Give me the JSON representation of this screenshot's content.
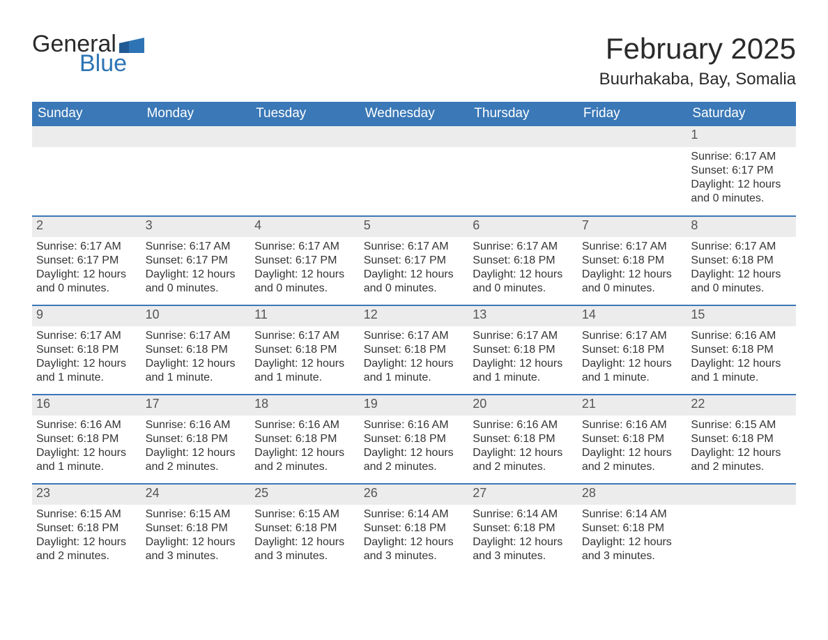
{
  "logo": {
    "general": "General",
    "blue": "Blue",
    "accent_color": "#2e74b5"
  },
  "title": "February 2025",
  "location": "Buurhakaba, Bay, Somalia",
  "colors": {
    "header_bg": "#3a78b7",
    "header_text": "#ffffff",
    "strip_bg": "#ececec",
    "border": "#3a78b7",
    "text": "#333333",
    "daynum": "#555555",
    "page_bg": "#ffffff"
  },
  "weekdays": [
    "Sunday",
    "Monday",
    "Tuesday",
    "Wednesday",
    "Thursday",
    "Friday",
    "Saturday"
  ],
  "weeks": [
    [
      null,
      null,
      null,
      null,
      null,
      null,
      {
        "n": "1",
        "sunrise": "Sunrise: 6:17 AM",
        "sunset": "Sunset: 6:17 PM",
        "daylight": "Daylight: 12 hours and 0 minutes."
      }
    ],
    [
      {
        "n": "2",
        "sunrise": "Sunrise: 6:17 AM",
        "sunset": "Sunset: 6:17 PM",
        "daylight": "Daylight: 12 hours and 0 minutes."
      },
      {
        "n": "3",
        "sunrise": "Sunrise: 6:17 AM",
        "sunset": "Sunset: 6:17 PM",
        "daylight": "Daylight: 12 hours and 0 minutes."
      },
      {
        "n": "4",
        "sunrise": "Sunrise: 6:17 AM",
        "sunset": "Sunset: 6:17 PM",
        "daylight": "Daylight: 12 hours and 0 minutes."
      },
      {
        "n": "5",
        "sunrise": "Sunrise: 6:17 AM",
        "sunset": "Sunset: 6:17 PM",
        "daylight": "Daylight: 12 hours and 0 minutes."
      },
      {
        "n": "6",
        "sunrise": "Sunrise: 6:17 AM",
        "sunset": "Sunset: 6:18 PM",
        "daylight": "Daylight: 12 hours and 0 minutes."
      },
      {
        "n": "7",
        "sunrise": "Sunrise: 6:17 AM",
        "sunset": "Sunset: 6:18 PM",
        "daylight": "Daylight: 12 hours and 0 minutes."
      },
      {
        "n": "8",
        "sunrise": "Sunrise: 6:17 AM",
        "sunset": "Sunset: 6:18 PM",
        "daylight": "Daylight: 12 hours and 0 minutes."
      }
    ],
    [
      {
        "n": "9",
        "sunrise": "Sunrise: 6:17 AM",
        "sunset": "Sunset: 6:18 PM",
        "daylight": "Daylight: 12 hours and 1 minute."
      },
      {
        "n": "10",
        "sunrise": "Sunrise: 6:17 AM",
        "sunset": "Sunset: 6:18 PM",
        "daylight": "Daylight: 12 hours and 1 minute."
      },
      {
        "n": "11",
        "sunrise": "Sunrise: 6:17 AM",
        "sunset": "Sunset: 6:18 PM",
        "daylight": "Daylight: 12 hours and 1 minute."
      },
      {
        "n": "12",
        "sunrise": "Sunrise: 6:17 AM",
        "sunset": "Sunset: 6:18 PM",
        "daylight": "Daylight: 12 hours and 1 minute."
      },
      {
        "n": "13",
        "sunrise": "Sunrise: 6:17 AM",
        "sunset": "Sunset: 6:18 PM",
        "daylight": "Daylight: 12 hours and 1 minute."
      },
      {
        "n": "14",
        "sunrise": "Sunrise: 6:17 AM",
        "sunset": "Sunset: 6:18 PM",
        "daylight": "Daylight: 12 hours and 1 minute."
      },
      {
        "n": "15",
        "sunrise": "Sunrise: 6:16 AM",
        "sunset": "Sunset: 6:18 PM",
        "daylight": "Daylight: 12 hours and 1 minute."
      }
    ],
    [
      {
        "n": "16",
        "sunrise": "Sunrise: 6:16 AM",
        "sunset": "Sunset: 6:18 PM",
        "daylight": "Daylight: 12 hours and 1 minute."
      },
      {
        "n": "17",
        "sunrise": "Sunrise: 6:16 AM",
        "sunset": "Sunset: 6:18 PM",
        "daylight": "Daylight: 12 hours and 2 minutes."
      },
      {
        "n": "18",
        "sunrise": "Sunrise: 6:16 AM",
        "sunset": "Sunset: 6:18 PM",
        "daylight": "Daylight: 12 hours and 2 minutes."
      },
      {
        "n": "19",
        "sunrise": "Sunrise: 6:16 AM",
        "sunset": "Sunset: 6:18 PM",
        "daylight": "Daylight: 12 hours and 2 minutes."
      },
      {
        "n": "20",
        "sunrise": "Sunrise: 6:16 AM",
        "sunset": "Sunset: 6:18 PM",
        "daylight": "Daylight: 12 hours and 2 minutes."
      },
      {
        "n": "21",
        "sunrise": "Sunrise: 6:16 AM",
        "sunset": "Sunset: 6:18 PM",
        "daylight": "Daylight: 12 hours and 2 minutes."
      },
      {
        "n": "22",
        "sunrise": "Sunrise: 6:15 AM",
        "sunset": "Sunset: 6:18 PM",
        "daylight": "Daylight: 12 hours and 2 minutes."
      }
    ],
    [
      {
        "n": "23",
        "sunrise": "Sunrise: 6:15 AM",
        "sunset": "Sunset: 6:18 PM",
        "daylight": "Daylight: 12 hours and 2 minutes."
      },
      {
        "n": "24",
        "sunrise": "Sunrise: 6:15 AM",
        "sunset": "Sunset: 6:18 PM",
        "daylight": "Daylight: 12 hours and 3 minutes."
      },
      {
        "n": "25",
        "sunrise": "Sunrise: 6:15 AM",
        "sunset": "Sunset: 6:18 PM",
        "daylight": "Daylight: 12 hours and 3 minutes."
      },
      {
        "n": "26",
        "sunrise": "Sunrise: 6:14 AM",
        "sunset": "Sunset: 6:18 PM",
        "daylight": "Daylight: 12 hours and 3 minutes."
      },
      {
        "n": "27",
        "sunrise": "Sunrise: 6:14 AM",
        "sunset": "Sunset: 6:18 PM",
        "daylight": "Daylight: 12 hours and 3 minutes."
      },
      {
        "n": "28",
        "sunrise": "Sunrise: 6:14 AM",
        "sunset": "Sunset: 6:18 PM",
        "daylight": "Daylight: 12 hours and 3 minutes."
      },
      null
    ]
  ]
}
